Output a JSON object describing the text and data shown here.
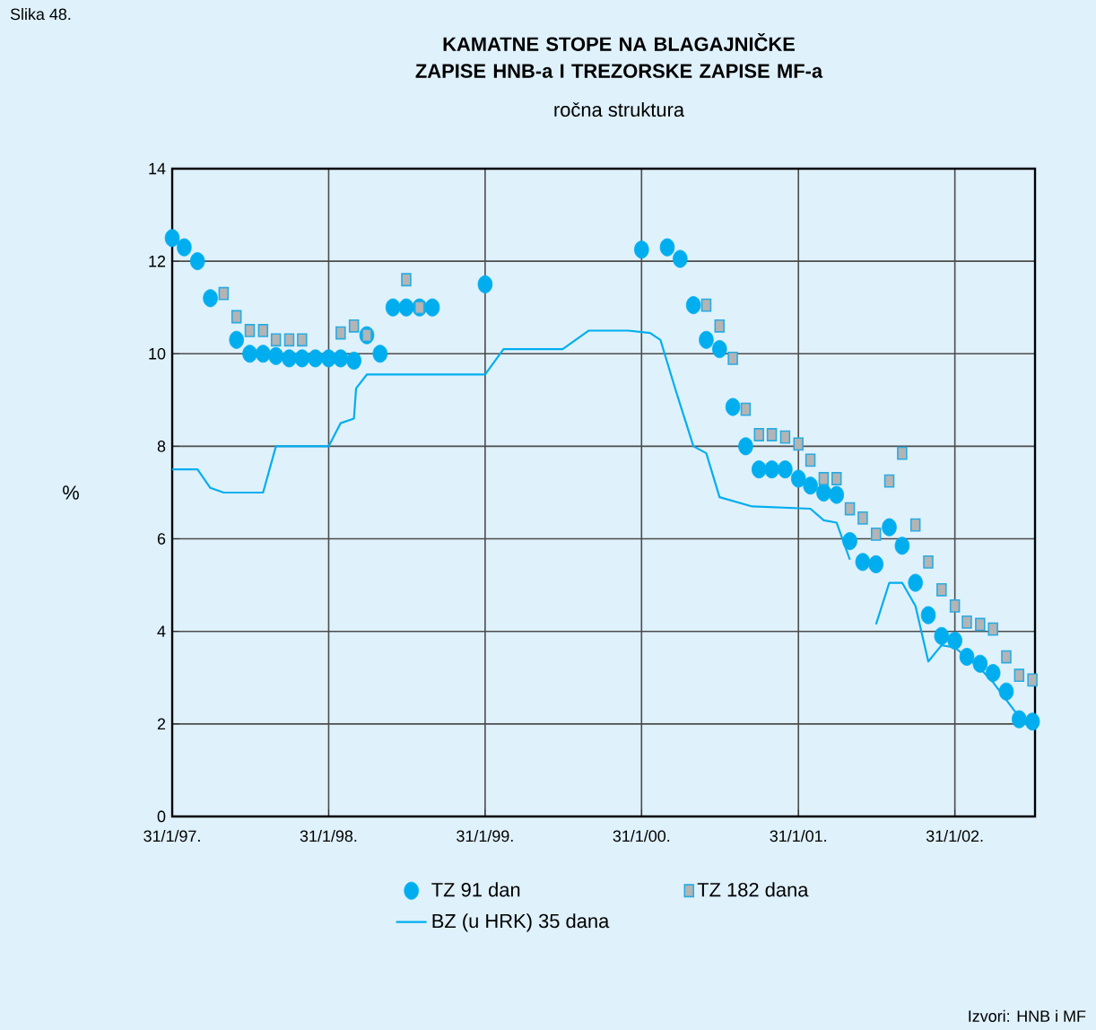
{
  "chart_data": {
    "type": "scatter",
    "title": "KAMATNE STOPE NA BLAGAJNIČKE ZAPISE HNB-a I TREZORSKE ZAPISE MF-a",
    "subtitle": "ročna struktura",
    "ylabel": "%",
    "annotations": [
      "Slika 48.",
      "Izvori: HNB i MF"
    ],
    "xlim": [
      "1997-01-31",
      "2002-08-06"
    ],
    "xticks": [
      {
        "value": "1997-01-31",
        "label": "31/1/97."
      },
      {
        "value": "1998-01-31",
        "label": "31/1/98."
      },
      {
        "value": "1999-01-31",
        "label": "31/1/99."
      },
      {
        "value": "2000-01-31",
        "label": "31/1/00."
      },
      {
        "value": "2001-01-31",
        "label": "31/1/01."
      },
      {
        "value": "2002-01-31",
        "label": "31/1/02."
      }
    ],
    "ylim": [
      0,
      14
    ],
    "yticks": [
      0,
      2,
      4,
      6,
      8,
      10,
      12,
      14
    ],
    "grid": true,
    "legend": "bottom",
    "series": [
      {
        "name": "TZ 91 dan",
        "marker": "circle",
        "color": "#00aeef",
        "x": [
          "1997-01-31",
          "1997-02-28",
          "1997-03-31",
          "1997-04-30",
          "1997-06-30",
          "1997-07-31",
          "1997-08-31",
          "1997-09-30",
          "1997-10-31",
          "1997-11-30",
          "1997-12-31",
          "1998-01-31",
          "1998-02-28",
          "1998-03-31",
          "1998-04-30",
          "1998-05-31",
          "1998-06-30",
          "1998-07-31",
          "1998-08-31",
          "1998-09-30",
          "1999-01-31",
          "2000-01-31",
          "2000-03-31",
          "2000-04-30",
          "2000-05-31",
          "2000-06-30",
          "2000-07-31",
          "2000-08-31",
          "2000-09-30",
          "2000-10-31",
          "2000-11-30",
          "2000-12-31",
          "2001-01-31",
          "2001-02-28",
          "2001-03-31",
          "2001-04-30",
          "2001-05-31",
          "2001-06-30",
          "2001-07-31",
          "2001-08-31",
          "2001-09-30",
          "2001-10-31",
          "2001-11-30",
          "2001-12-31",
          "2002-01-31",
          "2002-02-28",
          "2002-03-31",
          "2002-04-30",
          "2002-05-31",
          "2002-06-30",
          "2002-07-31"
        ],
        "values": [
          12.5,
          12.3,
          12.0,
          11.2,
          10.3,
          10.0,
          10.0,
          9.95,
          9.9,
          9.9,
          9.9,
          9.9,
          9.9,
          9.85,
          10.4,
          10.0,
          11.0,
          11.0,
          11.0,
          11.0,
          11.5,
          12.25,
          12.3,
          12.05,
          11.05,
          10.3,
          10.1,
          8.85,
          8.0,
          7.5,
          7.5,
          7.5,
          7.3,
          7.15,
          7.0,
          6.95,
          5.95,
          5.5,
          5.45,
          6.25,
          5.85,
          5.05,
          4.35,
          3.9,
          3.8,
          3.45,
          3.3,
          3.1,
          2.7,
          2.1,
          2.05
        ]
      },
      {
        "name": "TZ 182 dana",
        "marker": "square",
        "color": "#b4b4b4",
        "x": [
          "1997-05-31",
          "1997-06-30",
          "1997-07-31",
          "1997-08-31",
          "1997-09-30",
          "1997-10-31",
          "1997-11-30",
          "1998-02-28",
          "1998-03-31",
          "1998-04-30",
          "1998-07-31",
          "1998-08-31",
          "2000-06-30",
          "2000-07-31",
          "2000-08-31",
          "2000-09-30",
          "2000-10-31",
          "2000-11-30",
          "2000-12-31",
          "2001-01-31",
          "2001-02-28",
          "2001-03-31",
          "2001-04-30",
          "2001-05-31",
          "2001-06-30",
          "2001-07-31",
          "2001-08-31",
          "2001-09-30",
          "2001-10-31",
          "2001-11-30",
          "2001-12-31",
          "2002-01-31",
          "2002-02-28",
          "2002-03-31",
          "2002-04-30",
          "2002-05-31",
          "2002-06-30",
          "2002-07-31"
        ],
        "values": [
          11.3,
          10.8,
          10.5,
          10.5,
          10.3,
          10.3,
          10.3,
          10.45,
          10.6,
          10.4,
          11.6,
          11.0,
          11.05,
          10.6,
          9.9,
          8.8,
          8.25,
          8.25,
          8.2,
          8.05,
          7.7,
          7.3,
          7.3,
          6.65,
          6.45,
          6.1,
          7.25,
          7.85,
          6.3,
          5.5,
          4.9,
          4.55,
          4.2,
          4.15,
          4.05,
          3.45,
          3.05,
          2.95
        ]
      },
      {
        "name": "BZ (u HRK) 35 dana",
        "type": "line",
        "marker": "none",
        "color": "#00aeef",
        "x": [
          "1997-01-31",
          "1997-03-31",
          "1997-04-30",
          "1997-05-31",
          "1997-08-31",
          "1997-09-30",
          "1998-01-31",
          "1998-02-28",
          "1998-03-31",
          "1998-04-05",
          "1998-04-30",
          "1999-01-31",
          "1999-03-15",
          "1999-07-31",
          "1999-09-30",
          "1999-12-31",
          "2000-02-20",
          "2000-03-15",
          "2000-04-20",
          "2000-05-31",
          "2000-06-30",
          "2000-07-31",
          "2000-10-15",
          "2001-02-28",
          "2001-03-31",
          "2001-04-30",
          "2001-05-31",
          "2001-06-30",
          "2001-07-31",
          "2001-08-31",
          "2001-09-30",
          "2001-10-31",
          "2001-11-30",
          "2001-12-31",
          "2002-01-31",
          "2002-03-31",
          "2002-04-30",
          "2002-06-30",
          "2002-07-31"
        ],
        "values": [
          7.5,
          7.5,
          7.1,
          7.0,
          7.0,
          8.0,
          8.0,
          8.5,
          8.6,
          9.25,
          9.55,
          9.55,
          10.1,
          10.1,
          10.5,
          10.5,
          10.45,
          10.3,
          9.2,
          8.0,
          7.85,
          6.9,
          6.7,
          6.65,
          6.4,
          6.35,
          5.55,
          null,
          4.15,
          5.05,
          5.05,
          4.55,
          3.35,
          3.7,
          3.65,
          3.2,
          2.9,
          2.15,
          2.0
        ]
      }
    ]
  }
}
